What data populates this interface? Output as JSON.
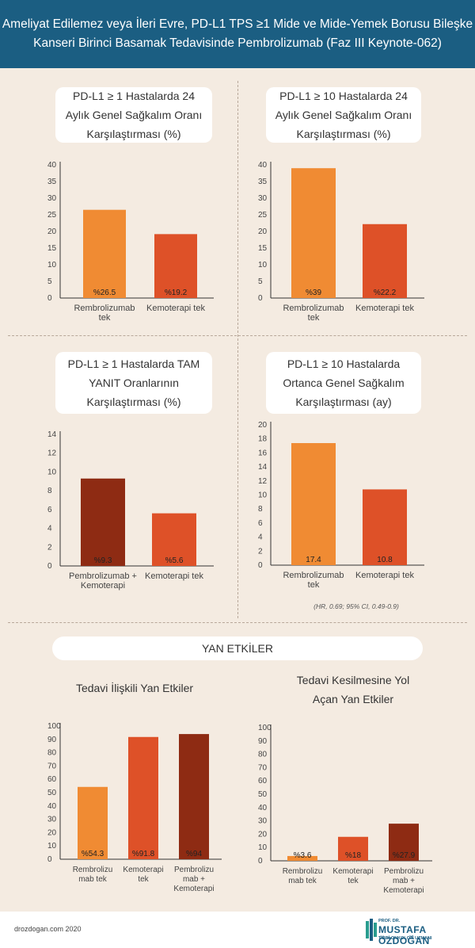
{
  "header": {
    "line1": "Ameliyat Edilemez veya İleri Evre, PD-L1  TPS ≥1 Mide ve Mide-Yemek Borusu Bileşke",
    "line2": "Kanseri Birinci Basamak Tedavisinde Pembrolizumab (Faz III Keynote-062)"
  },
  "panels": [
    {
      "title": [
        "PD-L1 ≥ 1 Hastalarda 24",
        "Aylık Genel Sağkalım Oranı",
        "Karşılaştırması (%)"
      ]
    },
    {
      "title": [
        "PD-L1 ≥ 10 Hastalarda 24",
        "Aylık Genel Sağkalım Oranı",
        "Karşılaştırması (%)"
      ]
    },
    {
      "title": [
        "PD-L1 ≥ 1 Hastalarda TAM",
        "YANIT Oranlarının",
        "Karşılaştırması (%)"
      ]
    },
    {
      "title": [
        "PD-L1 ≥ 10 Hastalarda",
        "Ortanca Genel Sağkalım",
        "Karşılaştırması (ay)"
      ]
    },
    {
      "title": [
        "Tedavi İlişkili Yan Etkiler"
      ]
    },
    {
      "title": [
        "Tedavi Kesilmesine Yol",
        "Açan Yan Etkiler"
      ]
    }
  ],
  "note": "(HR, 0.69; 95% CI, 0.49-0.9)",
  "section": {
    "yan_etkiler": "YAN ETKİLER"
  },
  "footer": {
    "site": "drozdogan.com 2020",
    "logo": {
      "prefix": "PROF. DR.",
      "name": "MUSTAFA ÖZDOĞAN",
      "subtitle": "TIBBİ ONKOLOJİ UZMANI"
    }
  },
  "colors": {
    "header_bg": "#1b5e82",
    "background": "#f4ebe1",
    "orange": "#f08b33",
    "red_orange": "#de5128",
    "dark_red": "#8e2b13"
  },
  "chart_data": [
    {
      "type": "bar",
      "categories": [
        "Rembrolizumab\ntek",
        "Kemoterapi tek"
      ],
      "values": [
        26.5,
        19.2
      ],
      "labels": [
        "%26.5",
        "%19.2"
      ],
      "colors": [
        "#f08b33",
        "#de5128"
      ],
      "yticks": [
        0,
        5,
        10,
        15,
        20,
        25,
        30,
        35,
        40
      ],
      "ylim": [
        0,
        40
      ]
    },
    {
      "type": "bar",
      "categories": [
        "Rembrolizumab\ntek",
        "Kemoterapi tek"
      ],
      "values": [
        39,
        22.2
      ],
      "labels": [
        "%39",
        "%22.2"
      ],
      "colors": [
        "#f08b33",
        "#de5128"
      ],
      "yticks": [
        0,
        5,
        10,
        15,
        20,
        25,
        30,
        35,
        40
      ],
      "ylim": [
        0,
        40
      ]
    },
    {
      "type": "bar",
      "categories": [
        "Pembrolizumab +\nKemoterapi",
        "Kemoterapi tek"
      ],
      "values": [
        9.3,
        5.6
      ],
      "labels": [
        "%9.3",
        "%5.6"
      ],
      "colors": [
        "#8e2b13",
        "#de5128"
      ],
      "yticks": [
        0,
        2,
        4,
        6,
        8,
        10,
        12,
        14
      ],
      "ylim": [
        0,
        14
      ]
    },
    {
      "type": "bar",
      "categories": [
        "Rembrolizumab\ntek",
        "Kemoterapi tek"
      ],
      "values": [
        17.4,
        10.8
      ],
      "labels": [
        "17.4",
        "10.8"
      ],
      "colors": [
        "#f08b33",
        "#de5128"
      ],
      "yticks": [
        0,
        2,
        4,
        6,
        8,
        10,
        12,
        14,
        16,
        18,
        20
      ],
      "ylim": [
        0,
        20
      ]
    },
    {
      "type": "bar",
      "categories": [
        "Rembrolizu\nmab tek",
        "Kemoterapi\ntek",
        "Pembrolizu\nmab +\nKemoterapi"
      ],
      "values": [
        54.3,
        91.8,
        94
      ],
      "labels": [
        "%54.3",
        "%91.8",
        "%94"
      ],
      "colors": [
        "#f08b33",
        "#de5128",
        "#8e2b13"
      ],
      "yticks": [
        0,
        10,
        20,
        30,
        40,
        50,
        60,
        70,
        80,
        90,
        100
      ],
      "ylim": [
        0,
        100
      ]
    },
    {
      "type": "bar",
      "categories": [
        "Rembrolizu\nmab tek",
        "Kemoterapi\ntek",
        "Pembrolizu\nmab +\nKemoterapi"
      ],
      "values": [
        3.6,
        18,
        27.9
      ],
      "labels": [
        "%3.6",
        "%18",
        "%27.9"
      ],
      "colors": [
        "#f08b33",
        "#de5128",
        "#8e2b13"
      ],
      "yticks": [
        0,
        10,
        20,
        30,
        40,
        50,
        60,
        70,
        80,
        90,
        100
      ],
      "ylim": [
        0,
        100
      ]
    }
  ]
}
